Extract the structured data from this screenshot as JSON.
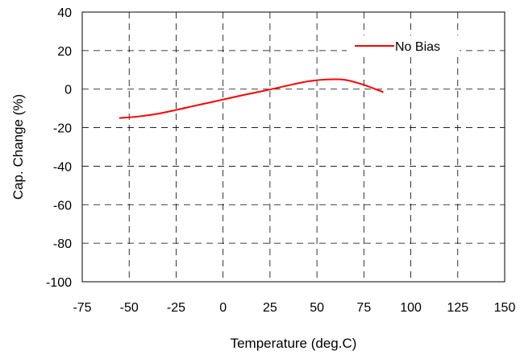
{
  "chart_data": {
    "type": "line",
    "title": "",
    "xlabel": "Temperature (deg.C)",
    "ylabel": "Cap. Change (%)",
    "xlim": [
      -75,
      150
    ],
    "ylim": [
      -100,
      40
    ],
    "xticks": [
      -75,
      -50,
      -25,
      0,
      25,
      50,
      75,
      100,
      125,
      150
    ],
    "yticks": [
      -100,
      -80,
      -60,
      -40,
      -20,
      0,
      20,
      40
    ],
    "xtick_labels": [
      "-75",
      "-50",
      "-25",
      "0",
      "25",
      "50",
      "75",
      "100",
      "125",
      "150"
    ],
    "ytick_labels": [
      "-100",
      "-80",
      "-60",
      "-40",
      "-20",
      "0",
      "20",
      "40"
    ],
    "grid": true,
    "grid_style": "dashed",
    "legend_position": "top-right",
    "series": [
      {
        "name": "No Bias",
        "color": "#ff0000",
        "x": [
          -55,
          -45,
          -35,
          -25,
          -15,
          -5,
          5,
          15,
          25,
          35,
          45,
          55,
          65,
          75,
          85
        ],
        "y": [
          -15,
          -14.2,
          -12.8,
          -10.8,
          -8.6,
          -6.5,
          -4.3,
          -2.2,
          -0.2,
          2,
          4,
          5,
          4.8,
          2.2,
          -1.5
        ]
      }
    ]
  }
}
